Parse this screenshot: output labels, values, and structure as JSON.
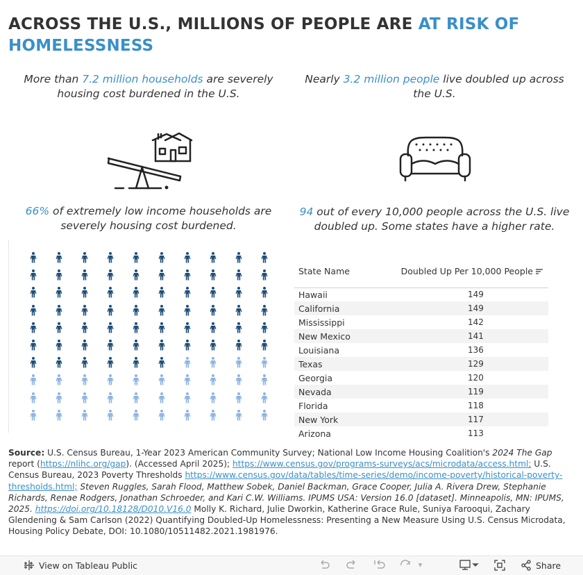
{
  "title": {
    "part1": "ACROSS THE U.S., MILLIONS OF PEOPLE ARE ",
    "highlight": "AT RISK OF HOMELESSNESS"
  },
  "stat_burdened": {
    "prefix": "More than ",
    "highlight": "7.2 million households",
    "suffix": " are severely housing cost burdened in the U.S."
  },
  "stat_doubled": {
    "prefix": "Nearly ",
    "highlight": "3.2 million people",
    "suffix": " live doubled up across the U.S."
  },
  "stat_eli": {
    "highlight": "66%",
    "suffix": " of extremely low income households are severely housing cost burdened."
  },
  "stat_per10k": {
    "highlight": "94",
    "suffix": " out of every 10,000 people across the U.S. live doubled up. Some states have a higher rate."
  },
  "colors": {
    "accent": "#3a8fc8",
    "dark_person": "#1f4e79",
    "light_person": "#8db4e2"
  },
  "people_grid": {
    "total": 100,
    "highlighted": 66,
    "columns": 10
  },
  "table": {
    "col_state": "State Name",
    "col_value": "Doubled Up Per 10,000 People",
    "rows": [
      {
        "state": "Hawaii",
        "value": "149"
      },
      {
        "state": "California",
        "value": "149"
      },
      {
        "state": "Mississippi",
        "value": "142"
      },
      {
        "state": "New Mexico",
        "value": "141"
      },
      {
        "state": "Louisiana",
        "value": "136"
      },
      {
        "state": "Texas",
        "value": "129"
      },
      {
        "state": "Georgia",
        "value": "120"
      },
      {
        "state": "Nevada",
        "value": "119"
      },
      {
        "state": "Florida",
        "value": "118"
      },
      {
        "state": "New York",
        "value": "117"
      },
      {
        "state": "Arizona",
        "value": "113"
      }
    ]
  },
  "source": {
    "label": "Source:",
    "t1": " U.S. Census Bureau, 1-Year 2023 American Community Survey; National Low Income Housing Coalition's ",
    "t1i": "2024 The Gap",
    "t2": " report (",
    "l1": "https://nlihc.org/gap",
    "t3": "). (Accessed April 2025); ",
    "l2": "https://www.census.gov/programs-surveys/acs/microdata/access.html;",
    "t4": " U.S. Census Bureau, 2023 Poverty Thresholds ",
    "l3": "https://www.census.gov/data/tables/time-series/demo/income-poverty/historical-poverty-thresholds.html;",
    "t5i": " Steven Ruggles, Sarah Flood, Matthew Sobek, Daniel Backman, Grace Cooper, Julia A. Rivera Drew, Stephanie Richards, Renae Rodgers, Jonathan Schroeder, and Kari C.W. Williams. IPUMS USA: Version 16.0 [dataset]. Minneapolis, MN: IPUMS, 2025.",
    "l4": "https://doi.org/10.18128/D010.V16.0",
    "t6": " Molly K. Richard, Julie Dworkin, Katherine Grace Rule, Suniya Farooqui, Zachary Glendening & Sam Carlson (2022) Quantifying Doubled-Up Homelessness: Presenting a New Measure Using U.S. Census Microdata, Housing Policy Debate, DOI: 10.1080/10511482.2021.1981976."
  },
  "toolbar": {
    "view_label": "View on Tableau Public",
    "share_label": "Share"
  }
}
